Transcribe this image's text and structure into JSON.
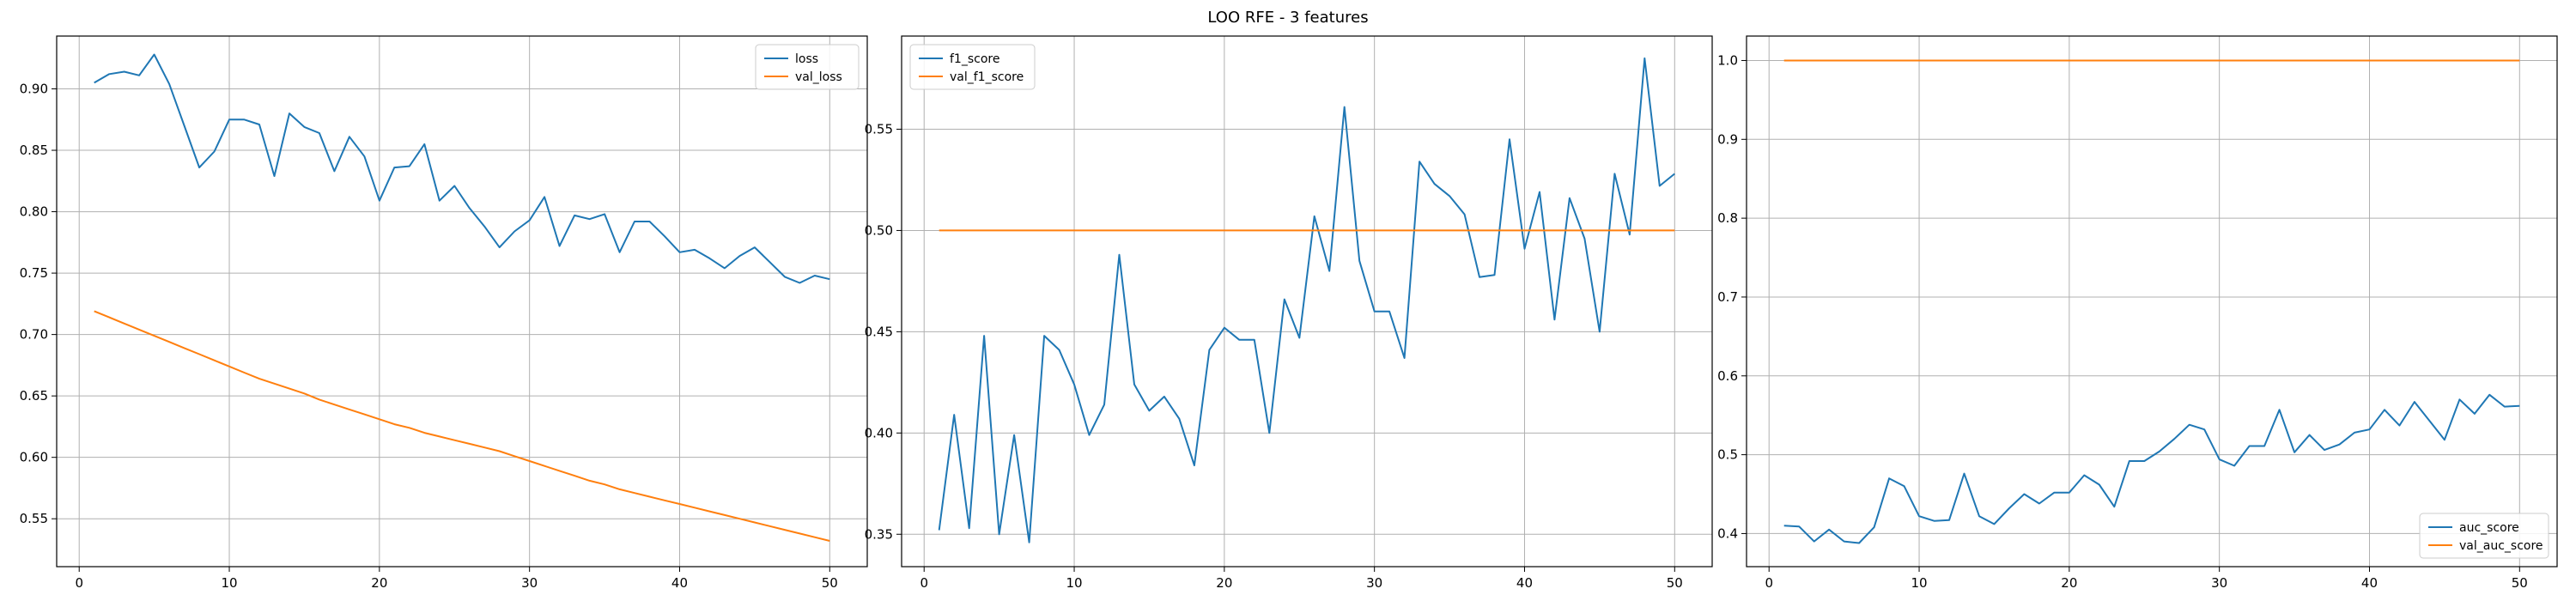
{
  "figure": {
    "title": "LOO RFE - 3 features"
  },
  "colors": {
    "blue": "#1f77b4",
    "orange": "#ff7f0e",
    "grid": "#b0b0b0"
  },
  "chart_data": [
    {
      "type": "line",
      "title": "",
      "xlabel": "",
      "ylabel": "",
      "xlim": [
        -1.5,
        52.5
      ],
      "ylim": [
        0.511,
        0.943
      ],
      "xticks": [
        0,
        10,
        20,
        30,
        40,
        50
      ],
      "xtick_labels": [
        "0",
        "10",
        "20",
        "30",
        "40",
        "50"
      ],
      "yticks": [
        0.55,
        0.6,
        0.65,
        0.7,
        0.75,
        0.8,
        0.85,
        0.9
      ],
      "ytick_labels": [
        "0.55",
        "0.60",
        "0.65",
        "0.70",
        "0.75",
        "0.80",
        "0.85",
        "0.90"
      ],
      "grid": true,
      "legend": "upper-right",
      "series": [
        {
          "name": "loss",
          "color": "#1f77b4",
          "x": [
            1,
            2,
            3,
            4,
            5,
            6,
            7,
            8,
            9,
            10,
            11,
            12,
            13,
            14,
            15,
            16,
            17,
            18,
            19,
            20,
            21,
            22,
            23,
            24,
            25,
            26,
            27,
            28,
            29,
            30,
            31,
            32,
            33,
            34,
            35,
            36,
            37,
            38,
            39,
            40,
            41,
            42,
            43,
            44,
            45,
            46,
            47,
            48,
            49,
            50
          ],
          "y": [
            0.905,
            0.912,
            0.914,
            0.911,
            0.928,
            0.904,
            0.87,
            0.836,
            0.849,
            0.875,
            0.875,
            0.871,
            0.829,
            0.88,
            0.869,
            0.864,
            0.833,
            0.861,
            0.845,
            0.809,
            0.836,
            0.837,
            0.855,
            0.809,
            0.821,
            0.803,
            0.788,
            0.771,
            0.784,
            0.793,
            0.812,
            0.772,
            0.797,
            0.794,
            0.798,
            0.767,
            0.792,
            0.792,
            0.78,
            0.767,
            0.769,
            0.762,
            0.754,
            0.764,
            0.771,
            0.759,
            0.747,
            0.742,
            0.748,
            0.745
          ]
        },
        {
          "name": "val_loss",
          "color": "#ff7f0e",
          "x": [
            1,
            2,
            3,
            4,
            5,
            6,
            7,
            8,
            9,
            10,
            11,
            12,
            13,
            14,
            15,
            16,
            17,
            18,
            19,
            20,
            21,
            22,
            23,
            24,
            25,
            26,
            27,
            28,
            29,
            30,
            31,
            32,
            33,
            34,
            35,
            36,
            37,
            38,
            39,
            40,
            41,
            42,
            43,
            44,
            45,
            46,
            47,
            48,
            49,
            50
          ],
          "y": [
            0.719,
            0.714,
            0.709,
            0.704,
            0.699,
            0.694,
            0.689,
            0.684,
            0.679,
            0.674,
            0.669,
            0.664,
            0.66,
            0.656,
            0.652,
            0.647,
            0.643,
            0.639,
            0.635,
            0.631,
            0.627,
            0.624,
            0.62,
            0.617,
            0.614,
            0.611,
            0.608,
            0.605,
            0.601,
            0.597,
            0.593,
            0.589,
            0.585,
            0.581,
            0.578,
            0.574,
            0.571,
            0.568,
            0.565,
            0.562,
            0.559,
            0.556,
            0.553,
            0.55,
            0.547,
            0.544,
            0.541,
            0.538,
            0.535,
            0.532
          ]
        }
      ]
    },
    {
      "type": "line",
      "title": "",
      "xlabel": "",
      "ylabel": "",
      "xlim": [
        -1.5,
        52.5
      ],
      "ylim": [
        0.334,
        0.596
      ],
      "xticks": [
        0,
        10,
        20,
        30,
        40,
        50
      ],
      "xtick_labels": [
        "0",
        "10",
        "20",
        "30",
        "40",
        "50"
      ],
      "yticks": [
        0.35,
        0.4,
        0.45,
        0.5,
        0.55
      ],
      "ytick_labels": [
        "0.35",
        "0.40",
        "0.45",
        "0.50",
        "0.55"
      ],
      "grid": true,
      "legend": "upper-left",
      "series": [
        {
          "name": "f1_score",
          "color": "#1f77b4",
          "x": [
            1,
            2,
            3,
            4,
            5,
            6,
            7,
            8,
            9,
            10,
            11,
            12,
            13,
            14,
            15,
            16,
            17,
            18,
            19,
            20,
            21,
            22,
            23,
            24,
            25,
            26,
            27,
            28,
            29,
            30,
            31,
            32,
            33,
            34,
            35,
            36,
            37,
            38,
            39,
            40,
            41,
            42,
            43,
            44,
            45,
            46,
            47,
            48,
            49,
            50
          ],
          "y": [
            0.352,
            0.409,
            0.353,
            0.448,
            0.35,
            0.399,
            0.346,
            0.448,
            0.441,
            0.424,
            0.399,
            0.414,
            0.488,
            0.424,
            0.411,
            0.418,
            0.407,
            0.384,
            0.441,
            0.452,
            0.446,
            0.446,
            0.4,
            0.466,
            0.447,
            0.507,
            0.48,
            0.561,
            0.485,
            0.46,
            0.46,
            0.437,
            0.534,
            0.523,
            0.517,
            0.508,
            0.477,
            0.478,
            0.545,
            0.491,
            0.519,
            0.456,
            0.516,
            0.496,
            0.45,
            0.528,
            0.498,
            0.585,
            0.522,
            0.528
          ]
        },
        {
          "name": "val_f1_score",
          "color": "#ff7f0e",
          "x": [
            1,
            50
          ],
          "y": [
            0.5,
            0.5
          ]
        }
      ]
    },
    {
      "type": "line",
      "title": "",
      "xlabel": "",
      "ylabel": "",
      "xlim": [
        -1.5,
        52.5
      ],
      "ylim": [
        0.358,
        1.031
      ],
      "xticks": [
        0,
        10,
        20,
        30,
        40,
        50
      ],
      "xtick_labels": [
        "0",
        "10",
        "20",
        "30",
        "40",
        "50"
      ],
      "yticks": [
        0.4,
        0.5,
        0.6,
        0.7,
        0.8,
        0.9,
        1.0
      ],
      "ytick_labels": [
        "0.4",
        "0.5",
        "0.6",
        "0.7",
        "0.8",
        "0.9",
        "1.0"
      ],
      "grid": true,
      "legend": "lower-right",
      "series": [
        {
          "name": "auc_score",
          "color": "#1f77b4",
          "x": [
            1,
            2,
            3,
            4,
            5,
            6,
            7,
            8,
            9,
            10,
            11,
            12,
            13,
            14,
            15,
            16,
            17,
            18,
            19,
            20,
            21,
            22,
            23,
            24,
            25,
            26,
            27,
            28,
            29,
            30,
            31,
            32,
            33,
            34,
            35,
            36,
            37,
            38,
            39,
            40,
            41,
            42,
            43,
            44,
            45,
            46,
            47,
            48,
            49,
            50
          ],
          "y": [
            0.41,
            0.409,
            0.39,
            0.405,
            0.39,
            0.388,
            0.408,
            0.47,
            0.46,
            0.422,
            0.416,
            0.417,
            0.476,
            0.422,
            0.412,
            0.432,
            0.45,
            0.438,
            0.452,
            0.452,
            0.474,
            0.462,
            0.434,
            0.492,
            0.492,
            0.504,
            0.52,
            0.538,
            0.532,
            0.494,
            0.486,
            0.511,
            0.511,
            0.557,
            0.503,
            0.525,
            0.506,
            0.513,
            0.528,
            0.532,
            0.557,
            0.537,
            0.567,
            0.543,
            0.519,
            0.57,
            0.552,
            0.576,
            0.561,
            0.562
          ]
        },
        {
          "name": "val_auc_score",
          "color": "#ff7f0e",
          "x": [
            1,
            50
          ],
          "y": [
            1.0,
            1.0
          ]
        }
      ]
    }
  ]
}
